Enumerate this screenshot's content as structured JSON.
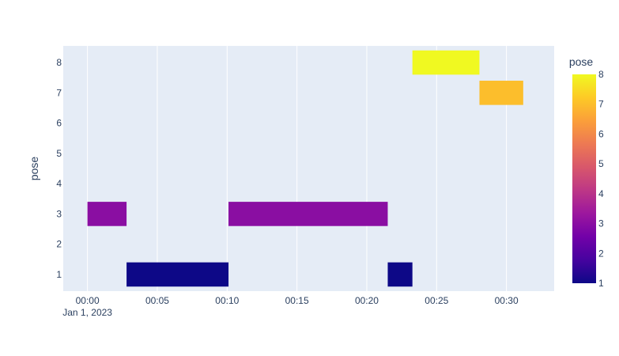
{
  "chart_data": {
    "type": "timeline",
    "ylabel": "pose",
    "x_date_label": "Jan 1, 2023",
    "x_tick_labels": [
      "00:00",
      "00:05",
      "00:10",
      "00:15",
      "00:20",
      "00:25",
      "00:30"
    ],
    "y_tick_labels": [
      "1",
      "2",
      "3",
      "4",
      "5",
      "6",
      "7",
      "8"
    ],
    "xlim": [
      "2022-12-31T23:58:16",
      "2023-01-01T00:33:25"
    ],
    "ylim": [
      0.45,
      8.55
    ],
    "bars": [
      {
        "start": "2023-01-01T00:00:00",
        "end": "2023-01-01T00:02:48",
        "pose": 3
      },
      {
        "start": "2023-01-01T00:02:48",
        "end": "2023-01-01T00:10:06",
        "pose": 1
      },
      {
        "start": "2023-01-01T00:10:06",
        "end": "2023-01-01T00:21:30",
        "pose": 3
      },
      {
        "start": "2023-01-01T00:21:30",
        "end": "2023-01-01T00:23:16",
        "pose": 1
      },
      {
        "start": "2023-01-01T00:23:16",
        "end": "2023-01-01T00:28:04",
        "pose": 8
      },
      {
        "start": "2023-01-01T00:28:04",
        "end": "2023-01-01T00:31:12",
        "pose": 7
      }
    ],
    "colorbar": {
      "title": "pose",
      "min": 1,
      "max": 8,
      "tick_labels": [
        "1",
        "2",
        "3",
        "4",
        "5",
        "6",
        "7",
        "8"
      ]
    },
    "colors": {
      "plot_background": "#e5ecf6",
      "gridline": "#ffffff",
      "text": "#2a3f5f",
      "colorscale": [
        "#0d0887",
        "#46039f",
        "#7201a8",
        "#9c179e",
        "#bd3786",
        "#d8576b",
        "#ed7953",
        "#fb9f3a",
        "#fdca26",
        "#f0f921"
      ]
    }
  }
}
